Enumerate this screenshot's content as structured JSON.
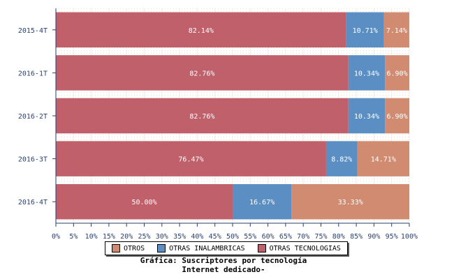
{
  "chart_data": {
    "type": "bar",
    "orientation": "horizontal",
    "stacked": true,
    "categories": [
      "2015-4T",
      "2016-1T",
      "2016-2T",
      "2016-3T",
      "2016-4T"
    ],
    "series": [
      {
        "name": "OTRAS TECNOLOGIAS",
        "color": "#c0606a",
        "values": [
          82.14,
          82.76,
          82.76,
          76.47,
          50.0
        ]
      },
      {
        "name": "OTRAS INALAMBRICAS",
        "color": "#5b8fc4",
        "values": [
          10.71,
          10.34,
          10.34,
          8.82,
          16.67
        ]
      },
      {
        "name": "OTROS",
        "color": "#d08b70",
        "values": [
          7.14,
          6.9,
          6.9,
          14.71,
          33.33
        ]
      }
    ],
    "data_labels": [
      [
        "82.14%",
        "10.71%",
        "7.14%"
      ],
      [
        "82.76%",
        "10.34%",
        "6.90%"
      ],
      [
        "82.76%",
        "10.34%",
        "6.90%"
      ],
      [
        "76.47%",
        "8.82%",
        "14.71%"
      ],
      [
        "50.00%",
        "16.67%",
        "33.33%"
      ]
    ],
    "xlim": [
      0,
      100
    ],
    "x_ticks": [
      "0%",
      "5%",
      "10%",
      "15%",
      "20%",
      "25%",
      "30%",
      "35%",
      "40%",
      "45%",
      "50%",
      "55%",
      "60%",
      "65%",
      "70%",
      "75%",
      "80%",
      "85%",
      "90%",
      "95%",
      "100%"
    ],
    "legend_order": [
      "OTROS",
      "OTRAS INALAMBRICAS",
      "OTRAS TECNOLOGIAS"
    ],
    "legend_placement": "bottom",
    "title_line1": "Gráfica: Suscriptores por tecnología",
    "title_line2": "Internet dedicado-"
  }
}
